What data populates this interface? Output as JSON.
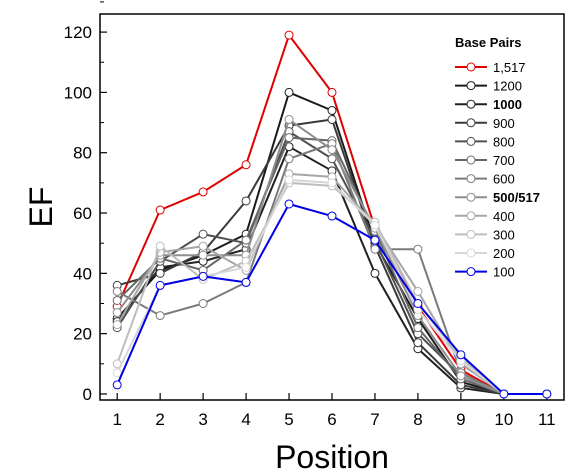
{
  "chart_data": {
    "type": "line",
    "xlabel": "Position",
    "ylabel": "EF",
    "xlim": [
      0.6,
      11.4
    ],
    "ylim": [
      -2,
      126
    ],
    "xticks": [
      1,
      2,
      3,
      4,
      5,
      6,
      7,
      8,
      9,
      10,
      11
    ],
    "yticks": [
      0,
      20,
      40,
      60,
      80,
      100,
      120
    ],
    "grid": false,
    "legend": {
      "title": "Base Pairs",
      "placement": "top-right"
    },
    "x": [
      1,
      2,
      3,
      4,
      5,
      6,
      7,
      8,
      9,
      10,
      11
    ],
    "series": [
      {
        "name": "1,517",
        "color": "#e00000",
        "bold": false,
        "values": [
          29,
          61,
          67,
          76,
          119,
          100,
          55,
          29,
          8,
          0,
          0
        ]
      },
      {
        "name": "1200",
        "color": "#1a1a1a",
        "bold": false,
        "values": [
          25,
          41,
          46,
          53,
          100,
          94,
          50,
          25,
          4,
          0,
          0
        ]
      },
      {
        "name": "1000",
        "color": "#202020",
        "bold": true,
        "values": [
          24,
          42,
          44,
          48,
          82,
          74,
          40,
          15,
          2,
          0,
          0
        ]
      },
      {
        "name": "900",
        "color": "#3a3a3a",
        "bold": false,
        "values": [
          36,
          40,
          47,
          64,
          89,
          91,
          49,
          17,
          3,
          0,
          0
        ]
      },
      {
        "name": "800",
        "color": "#505050",
        "bold": false,
        "values": [
          22,
          44,
          53,
          50,
          87,
          78,
          51,
          20,
          6,
          0,
          0
        ]
      },
      {
        "name": "700",
        "color": "#666666",
        "bold": false,
        "values": [
          31,
          45,
          41,
          51,
          85,
          84,
          54,
          22,
          5,
          0,
          0
        ]
      },
      {
        "name": "600",
        "color": "#7a7a7a",
        "bold": false,
        "values": [
          34,
          26,
          30,
          37,
          78,
          83,
          48,
          48,
          7,
          0,
          0
        ]
      },
      {
        "name": "500/517",
        "color": "#8e8e8e",
        "bold": true,
        "values": [
          27,
          46,
          46,
          46,
          91,
          81,
          55,
          26,
          6,
          0,
          0
        ]
      },
      {
        "name": "400",
        "color": "#a6a6a6",
        "bold": false,
        "values": [
          23,
          47,
          49,
          41,
          73,
          72,
          56,
          34,
          10,
          0,
          0
        ]
      },
      {
        "name": "300",
        "color": "#bdbdbd",
        "bold": false,
        "values": [
          10,
          49,
          38,
          44,
          70,
          69,
          57,
          30,
          12,
          0,
          0
        ]
      },
      {
        "name": "200",
        "color": "#d6d6d6",
        "bold": false,
        "values": [
          7,
          36,
          39,
          42,
          71,
          70,
          56,
          28,
          11,
          0,
          0
        ]
      },
      {
        "name": "100",
        "color": "#0000e6",
        "bold": false,
        "values": [
          3,
          36,
          39,
          37,
          63,
          59,
          51,
          30,
          13,
          0,
          0
        ]
      }
    ]
  }
}
